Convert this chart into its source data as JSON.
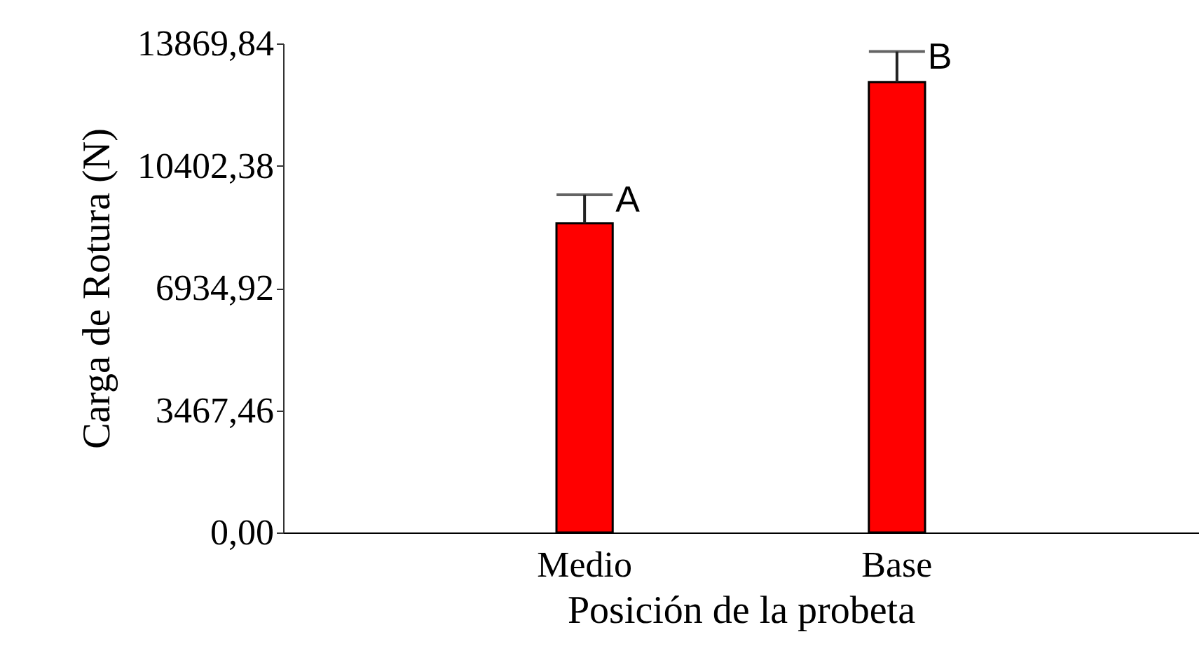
{
  "chart_data": {
    "type": "bar",
    "xlabel": "Posición de la probeta",
    "ylabel": "Carga de Rotura (N)",
    "categories": [
      "Medio",
      "Base"
    ],
    "values": [
      8770,
      12770
    ],
    "errors": [
      810,
      870
    ],
    "color": "#ff0000",
    "ylim": [
      0,
      13869.84
    ],
    "yticks": [
      {
        "value": 0,
        "label": "0,00"
      },
      {
        "value": 3467.46,
        "label": "3467,46"
      },
      {
        "value": 6934.92,
        "label": "6934,92"
      },
      {
        "value": 10402.38,
        "label": "10402,38"
      },
      {
        "value": 13869.84,
        "label": "13869,84"
      }
    ],
    "annotations": [
      "A",
      "B"
    ],
    "grid": false
  }
}
